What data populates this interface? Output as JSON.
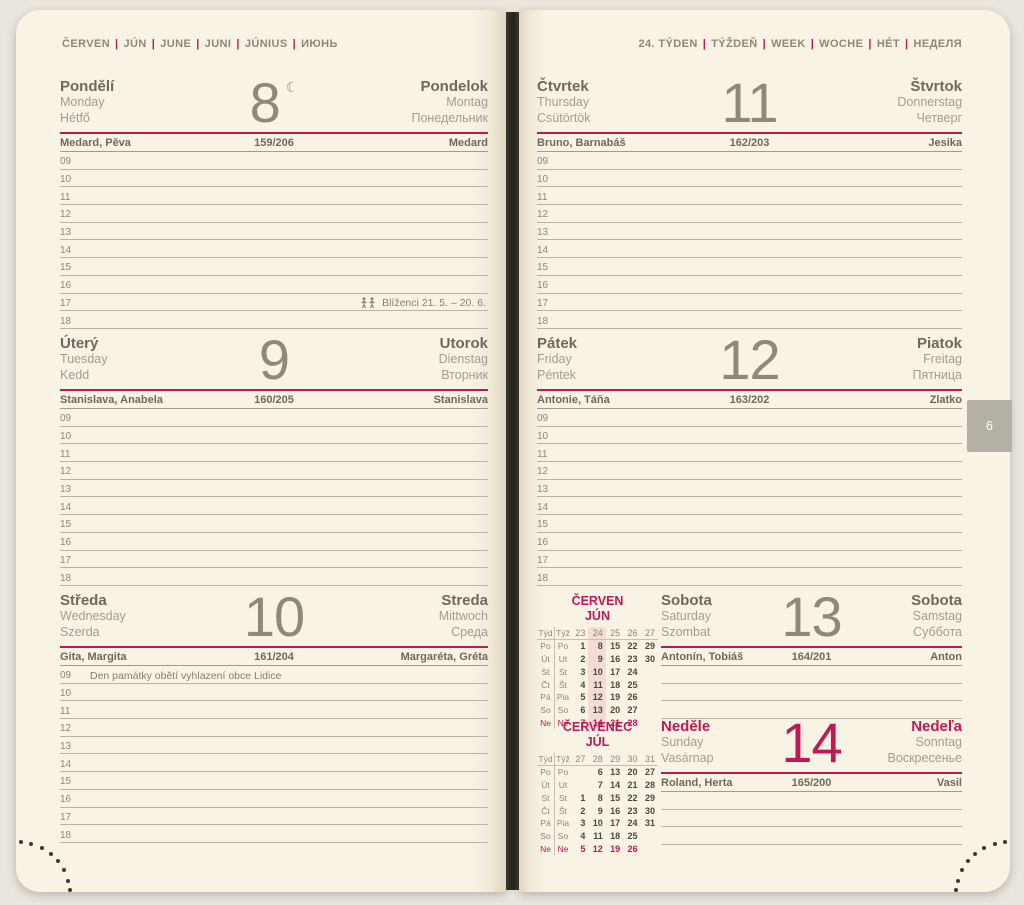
{
  "pipe": "|",
  "colors": {
    "accent": "#c01a56",
    "paper": "#f8f3e4",
    "background": "#eae6de",
    "tab_gray": "#b5b0a5",
    "highlight_pink": "#f4dbd5"
  },
  "month_header": {
    "parts": [
      "ČERVEN",
      "JÚN",
      "JUNE",
      "JUNI",
      "JÚNIUS",
      "ИЮНЬ"
    ]
  },
  "week_header": {
    "parts": [
      "24. TÝDEN",
      "TÝŽDEŇ",
      "WEEK",
      "WOCHE",
      "HÉT",
      "НЕДЕЛЯ"
    ]
  },
  "hours": [
    "09",
    "10",
    "11",
    "12",
    "13",
    "14",
    "15",
    "16",
    "17",
    "18"
  ],
  "days": [
    {
      "key": "monday",
      "titles_left": [
        "Pondělí",
        "Monday",
        "Hétfő"
      ],
      "number": "8",
      "moon": "☾",
      "titles_right": [
        "Pondelok",
        "Montag",
        "Понедельник"
      ],
      "nameday_left": "Medard, Pěva",
      "day_of_year": "159/206",
      "nameday_right": "Medard",
      "rows": 10,
      "labeled": true,
      "note": {
        "row": 8,
        "text": "Blíženci 21. 5. – 20. 6.",
        "align": "right",
        "icon": "gemini"
      }
    },
    {
      "key": "tuesday",
      "titles_left": [
        "Úterý",
        "Tuesday",
        "Kedd"
      ],
      "number": "9",
      "titles_right": [
        "Utorok",
        "Dienstag",
        "Вторник"
      ],
      "nameday_left": "Stanislava, Anabela",
      "day_of_year": "160/205",
      "nameday_right": "Stanislava",
      "rows": 10,
      "labeled": true
    },
    {
      "key": "wednesday",
      "titles_left": [
        "Středa",
        "Wednesday",
        "Szerda"
      ],
      "number": "10",
      "titles_right": [
        "Streda",
        "Mittwoch",
        "Среда"
      ],
      "nameday_left": "Gita, Margita",
      "day_of_year": "161/204",
      "nameday_right": "Margaréta, Gréta",
      "rows": 10,
      "labeled": true,
      "note": {
        "row": 0,
        "text": "Den památky obětí vyhlazení obce Lidice",
        "align": "left"
      }
    },
    {
      "key": "thursday",
      "titles_left": [
        "Čtvrtek",
        "Thursday",
        "Csütörtök"
      ],
      "number": "11",
      "titles_right": [
        "Štvrtok",
        "Donnerstag",
        "Четверг"
      ],
      "nameday_left": "Bruno, Barnabáš",
      "day_of_year": "162/203",
      "nameday_right": "Jesika",
      "rows": 10,
      "labeled": true
    },
    {
      "key": "friday",
      "titles_left": [
        "Pátek",
        "Friday",
        "Péntek"
      ],
      "number": "12",
      "titles_right": [
        "Piatok",
        "Freitag",
        "Пятница"
      ],
      "nameday_left": "Antonie, Táňa",
      "day_of_year": "163/202",
      "nameday_right": "Zlatko",
      "rows": 10,
      "labeled": true
    },
    {
      "key": "saturday",
      "titles_left": [
        "Sobota",
        "Saturday",
        "Szombat"
      ],
      "number": "13",
      "titles_right": [
        "Sobota",
        "Samstag",
        "Суббота"
      ],
      "nameday_left": "Antonín, Tobiáš",
      "day_of_year": "164/201",
      "nameday_right": "Anton",
      "rows": 3,
      "labeled": false
    },
    {
      "key": "sunday",
      "accent": true,
      "titles_left": [
        "Neděle",
        "Sunday",
        "Vasárnap"
      ],
      "number": "14",
      "titles_right": [
        "Nedeľa",
        "Sonntag",
        "Воскресенье"
      ],
      "nameday_left": "Roland, Herta",
      "day_of_year": "165/200",
      "nameday_right": "Vasil",
      "rows": 3,
      "labeled": false
    }
  ],
  "mini_calendars": [
    {
      "title_line1": "ČERVEN",
      "title_line2": "JÚN",
      "week_header": [
        "Týd",
        "Týž",
        "23",
        "24",
        "25",
        "26",
        "27"
      ],
      "highlight_col": 3,
      "rows": [
        [
          "Po",
          "Po",
          "1",
          "8",
          "15",
          "22",
          "29"
        ],
        [
          "Út",
          "Ut",
          "2",
          "9",
          "16",
          "23",
          "30"
        ],
        [
          "St",
          "St",
          "3",
          "10",
          "17",
          "24",
          ""
        ],
        [
          "Čt",
          "Št",
          "4",
          "11",
          "18",
          "25",
          ""
        ],
        [
          "Pá",
          "Pia",
          "5",
          "12",
          "19",
          "26",
          ""
        ],
        [
          "So",
          "So",
          "6",
          "13",
          "20",
          "27",
          ""
        ],
        [
          "Ne",
          "Ne",
          "7",
          "14",
          "21",
          "28",
          ""
        ]
      ]
    },
    {
      "title_line1": "ČERVENEC",
      "title_line2": "JÚL",
      "week_header": [
        "Týd",
        "Týž",
        "27",
        "28",
        "29",
        "30",
        "31"
      ],
      "highlight_col": -1,
      "rows": [
        [
          "Po",
          "Po",
          "",
          "6",
          "13",
          "20",
          "27"
        ],
        [
          "Út",
          "Ut",
          "",
          "7",
          "14",
          "21",
          "28"
        ],
        [
          "St",
          "St",
          "1",
          "8",
          "15",
          "22",
          "29"
        ],
        [
          "Čt",
          "Št",
          "2",
          "9",
          "16",
          "23",
          "30"
        ],
        [
          "Pá",
          "Pia",
          "3",
          "10",
          "17",
          "24",
          "31"
        ],
        [
          "So",
          "So",
          "4",
          "11",
          "18",
          "25",
          ""
        ],
        [
          "Ne",
          "Ne",
          "5",
          "12",
          "19",
          "26",
          ""
        ]
      ]
    }
  ],
  "tab_label": "6"
}
